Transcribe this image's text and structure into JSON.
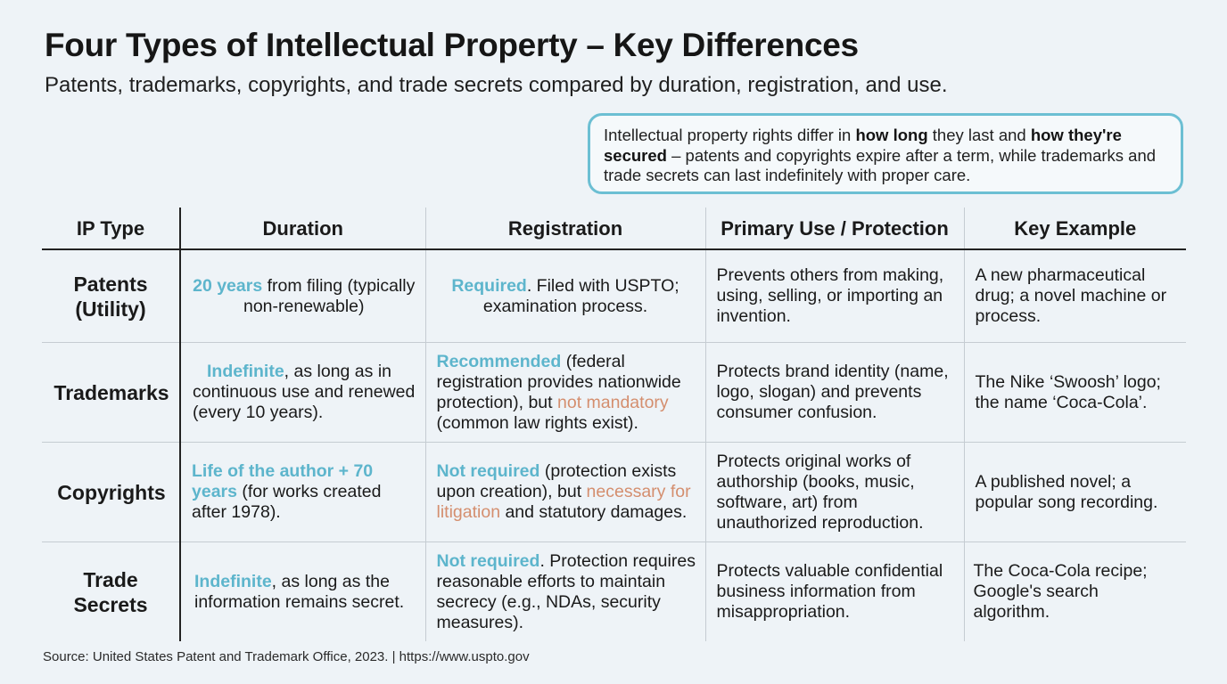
{
  "title": "Four Types of Intellectual Property – Key Differences",
  "subtitle": "Patents, trademarks, copyrights, and trade secrets compared by duration, registration, and use.",
  "callout": {
    "t1": "Intellectual property rights differ in ",
    "b1": "how long",
    "t2": " they last and ",
    "b2": "how they're secured",
    "t3": " – patents and copyrights expire after a term, while trademarks and trade secrets can last indefinitely with proper care."
  },
  "table": {
    "headers": [
      "IP Type",
      "Duration",
      "Registration",
      "Primary Use / Protection",
      "Key Example"
    ],
    "rows": [
      {
        "type": "Patents (Utility)",
        "duration": {
          "hl": "20 years",
          "rest": " from filing (typically non-renewable)"
        },
        "registration": {
          "hl": "Required",
          "rest": ". Filed with USPTO; examination process."
        },
        "use": "Prevents others from making, using, selling, or importing an invention.",
        "example": "A new pharmaceutical drug; a novel machine or process."
      },
      {
        "type": "Trademarks",
        "duration": {
          "hl": "Indefinite",
          "rest": ", as long as in continuous use and renewed (every 10 years)."
        },
        "registration": {
          "hl": "Recommended",
          "rest1": " (federal registration provides nationwide protection), but ",
          "warn": "not mandatory",
          "rest2": " (common law rights exist)."
        },
        "use": "Protects brand identity (name, logo, slogan) and prevents consumer confusion.",
        "example": "The Nike ‘Swoosh’ logo; the name ‘Coca-Cola’."
      },
      {
        "type": "Copyrights",
        "duration": {
          "hl": "Life of the author + 70 years",
          "rest": " (for works created after 1978)."
        },
        "registration": {
          "hl": "Not required",
          "rest1": " (protection exists upon creation), but ",
          "warn": "necessary for litigation",
          "rest2": " and statutory damages."
        },
        "use": "Protects original works of authorship (books, music, software, art) from unauthorized reproduction.",
        "example": "A published novel; a popular song recording."
      },
      {
        "type": "Trade Secrets",
        "duration": {
          "hl": "Indefinite",
          "rest": ", as long as the information remains secret."
        },
        "registration": {
          "hl": "Not required",
          "rest": ". Protection requires reasonable efforts to maintain secrecy (e.g., NDAs, security measures)."
        },
        "use": "Protects valuable confidential business information from misappropriation.",
        "example": "The Coca-Cola recipe; Google's search algorithm."
      }
    ]
  },
  "source": "Source: United States Patent and Trademark Office, 2023. | https://www.uspto.gov",
  "colors": {
    "accent_blue": "#5db5cc",
    "accent_orange": "#d48e6e",
    "callout_border": "#6cbfd3"
  }
}
